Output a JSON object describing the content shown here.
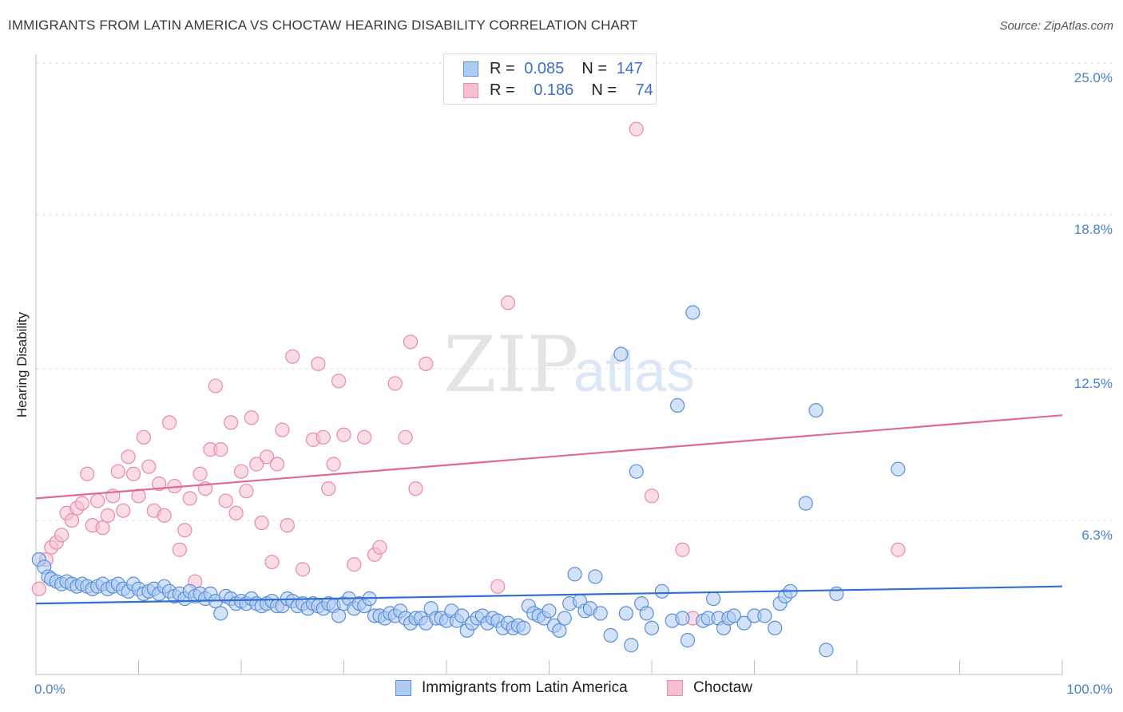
{
  "title": "IMMIGRANTS FROM LATIN AMERICA VS CHOCTAW HEARING DISABILITY CORRELATION CHART",
  "source": "Source: ZipAtlas.com",
  "watermark": {
    "zip": "ZIP",
    "atlas": "atlas"
  },
  "colors": {
    "blue_fill": "#aecbf2",
    "blue_stroke": "#5a8fd6",
    "blue_line": "#2e6fd1",
    "pink_fill": "#f6bfd0",
    "pink_stroke": "#e88aa8",
    "pink_line": "#e06a92",
    "grid": "#dcdcdc",
    "axis_text": "#4a7fcf"
  },
  "legend": {
    "rows": [
      {
        "r_label": "R =",
        "r_value": "0.085",
        "n_label": "N =",
        "n_value": "147"
      },
      {
        "r_label": "R =",
        "r_value": "0.186",
        "n_label": "N =",
        "n_value": "74"
      }
    ]
  },
  "chart_data": {
    "type": "scatter",
    "title": "IMMIGRANTS FROM LATIN AMERICA VS CHOCTAW HEARING DISABILITY CORRELATION CHART",
    "xlabel": "",
    "ylabel": "Hearing Disability",
    "xlim": [
      0,
      100
    ],
    "ylim": [
      0,
      25.0
    ],
    "x_tick_labels": [
      "0.0%",
      "100.0%"
    ],
    "y_ticks": [
      6.3,
      12.5,
      18.8,
      25.0
    ],
    "y_tick_labels": [
      "6.3%",
      "12.5%",
      "18.8%",
      "25.0%"
    ],
    "grid": true,
    "legend_position": "top-center",
    "series": [
      {
        "name": "Immigrants from Latin America",
        "color": "blue",
        "r": 0.085,
        "n": 147,
        "trend": {
          "x": [
            0,
            100
          ],
          "y": [
            2.9,
            3.6
          ]
        },
        "points": [
          [
            0.3,
            4.7
          ],
          [
            0.8,
            4.4
          ],
          [
            1.2,
            4.0
          ],
          [
            1.5,
            3.9
          ],
          [
            2.0,
            3.8
          ],
          [
            2.5,
            3.7
          ],
          [
            3.0,
            3.8
          ],
          [
            3.5,
            3.7
          ],
          [
            4.0,
            3.6
          ],
          [
            4.5,
            3.7
          ],
          [
            5.0,
            3.6
          ],
          [
            5.5,
            3.5
          ],
          [
            6.0,
            3.6
          ],
          [
            6.5,
            3.7
          ],
          [
            7.0,
            3.5
          ],
          [
            7.5,
            3.6
          ],
          [
            8.0,
            3.7
          ],
          [
            8.5,
            3.5
          ],
          [
            9.0,
            3.4
          ],
          [
            9.5,
            3.7
          ],
          [
            10.0,
            3.5
          ],
          [
            10.5,
            3.3
          ],
          [
            11.0,
            3.4
          ],
          [
            11.5,
            3.5
          ],
          [
            12.0,
            3.3
          ],
          [
            12.5,
            3.6
          ],
          [
            13.0,
            3.4
          ],
          [
            13.5,
            3.2
          ],
          [
            14.0,
            3.3
          ],
          [
            14.5,
            3.1
          ],
          [
            15.0,
            3.4
          ],
          [
            15.5,
            3.2
          ],
          [
            16.0,
            3.3
          ],
          [
            16.5,
            3.1
          ],
          [
            17.0,
            3.3
          ],
          [
            17.5,
            3.0
          ],
          [
            18.0,
            2.5
          ],
          [
            18.5,
            3.2
          ],
          [
            19.0,
            3.1
          ],
          [
            19.5,
            2.9
          ],
          [
            20.0,
            3.0
          ],
          [
            20.5,
            2.9
          ],
          [
            21.0,
            3.1
          ],
          [
            21.5,
            2.9
          ],
          [
            22.0,
            2.8
          ],
          [
            22.5,
            2.9
          ],
          [
            23.0,
            3.0
          ],
          [
            23.5,
            2.8
          ],
          [
            24.0,
            2.8
          ],
          [
            24.5,
            3.1
          ],
          [
            25.0,
            3.0
          ],
          [
            25.5,
            2.8
          ],
          [
            26.0,
            2.9
          ],
          [
            26.5,
            2.7
          ],
          [
            27.0,
            2.9
          ],
          [
            27.5,
            2.8
          ],
          [
            28.0,
            2.7
          ],
          [
            28.5,
            2.9
          ],
          [
            29.0,
            2.8
          ],
          [
            29.5,
            2.4
          ],
          [
            30.0,
            2.9
          ],
          [
            30.5,
            3.1
          ],
          [
            31.0,
            2.7
          ],
          [
            31.5,
            2.9
          ],
          [
            32.0,
            2.8
          ],
          [
            32.5,
            3.1
          ],
          [
            33.0,
            2.4
          ],
          [
            33.5,
            2.4
          ],
          [
            34.0,
            2.3
          ],
          [
            34.5,
            2.5
          ],
          [
            35.0,
            2.4
          ],
          [
            35.5,
            2.6
          ],
          [
            36.0,
            2.3
          ],
          [
            36.5,
            2.1
          ],
          [
            37.0,
            2.3
          ],
          [
            37.5,
            2.3
          ],
          [
            38.0,
            2.1
          ],
          [
            38.5,
            2.7
          ],
          [
            39.0,
            2.3
          ],
          [
            39.5,
            2.3
          ],
          [
            40.0,
            2.2
          ],
          [
            40.5,
            2.6
          ],
          [
            41.0,
            2.2
          ],
          [
            41.5,
            2.4
          ],
          [
            42.0,
            1.8
          ],
          [
            42.5,
            2.1
          ],
          [
            43.0,
            2.3
          ],
          [
            43.5,
            2.4
          ],
          [
            44.0,
            2.1
          ],
          [
            44.5,
            2.3
          ],
          [
            45.0,
            2.2
          ],
          [
            45.5,
            1.9
          ],
          [
            46.0,
            2.1
          ],
          [
            46.5,
            1.9
          ],
          [
            47.0,
            2.0
          ],
          [
            47.5,
            1.9
          ],
          [
            48.0,
            2.8
          ],
          [
            48.5,
            2.5
          ],
          [
            49.0,
            2.4
          ],
          [
            49.5,
            2.3
          ],
          [
            50.0,
            2.6
          ],
          [
            50.5,
            2.0
          ],
          [
            51.0,
            1.8
          ],
          [
            51.5,
            2.3
          ],
          [
            52.0,
            2.9
          ],
          [
            52.5,
            4.1
          ],
          [
            53.0,
            3.0
          ],
          [
            53.5,
            2.6
          ],
          [
            54.0,
            2.7
          ],
          [
            54.5,
            4.0
          ],
          [
            55.0,
            2.5
          ],
          [
            56.0,
            1.6
          ],
          [
            57.0,
            13.1
          ],
          [
            57.5,
            2.5
          ],
          [
            58.0,
            1.2
          ],
          [
            58.5,
            8.3
          ],
          [
            59.0,
            2.9
          ],
          [
            59.5,
            2.5
          ],
          [
            60.0,
            1.9
          ],
          [
            61.0,
            3.4
          ],
          [
            62.0,
            2.2
          ],
          [
            62.5,
            11.0
          ],
          [
            63.0,
            2.3
          ],
          [
            63.5,
            1.4
          ],
          [
            64.0,
            14.8
          ],
          [
            65.0,
            2.2
          ],
          [
            65.5,
            2.3
          ],
          [
            66.0,
            3.1
          ],
          [
            66.5,
            2.3
          ],
          [
            67.0,
            1.9
          ],
          [
            67.5,
            2.3
          ],
          [
            68.0,
            2.4
          ],
          [
            69.0,
            2.1
          ],
          [
            70.0,
            2.4
          ],
          [
            71.0,
            2.4
          ],
          [
            72.0,
            1.9
          ],
          [
            72.5,
            2.9
          ],
          [
            73.0,
            3.2
          ],
          [
            73.5,
            3.4
          ],
          [
            75.0,
            7.0
          ],
          [
            76.0,
            10.8
          ],
          [
            77.0,
            1.0
          ],
          [
            78.0,
            3.3
          ],
          [
            84.0,
            8.4
          ]
        ]
      },
      {
        "name": "Choctaw",
        "color": "pink",
        "r": 0.186,
        "n": 74,
        "trend": {
          "x": [
            0,
            100
          ],
          "y": [
            7.2,
            10.6
          ]
        },
        "points": [
          [
            0.3,
            3.5
          ],
          [
            1.0,
            4.7
          ],
          [
            1.5,
            5.2
          ],
          [
            2.0,
            5.4
          ],
          [
            2.5,
            5.7
          ],
          [
            3.0,
            6.6
          ],
          [
            3.5,
            6.3
          ],
          [
            4.0,
            6.8
          ],
          [
            4.5,
            7.0
          ],
          [
            5.0,
            8.2
          ],
          [
            5.5,
            6.1
          ],
          [
            6.0,
            7.1
          ],
          [
            6.5,
            6.0
          ],
          [
            7.0,
            6.5
          ],
          [
            7.5,
            7.3
          ],
          [
            8.0,
            8.3
          ],
          [
            8.5,
            6.7
          ],
          [
            9.0,
            8.9
          ],
          [
            9.5,
            8.2
          ],
          [
            10.0,
            7.3
          ],
          [
            10.5,
            9.7
          ],
          [
            11.0,
            8.5
          ],
          [
            11.5,
            6.7
          ],
          [
            12.0,
            7.8
          ],
          [
            12.5,
            6.5
          ],
          [
            13.0,
            10.3
          ],
          [
            13.5,
            7.7
          ],
          [
            14.0,
            5.1
          ],
          [
            14.5,
            5.9
          ],
          [
            15.0,
            7.2
          ],
          [
            15.5,
            3.8
          ],
          [
            16.0,
            8.2
          ],
          [
            16.5,
            7.6
          ],
          [
            17.0,
            9.2
          ],
          [
            17.5,
            11.8
          ],
          [
            18.0,
            9.2
          ],
          [
            18.5,
            7.1
          ],
          [
            19.0,
            10.3
          ],
          [
            19.5,
            6.6
          ],
          [
            20.0,
            8.3
          ],
          [
            20.5,
            7.5
          ],
          [
            21.0,
            10.5
          ],
          [
            21.5,
            8.6
          ],
          [
            22.0,
            6.2
          ],
          [
            22.5,
            8.9
          ],
          [
            23.0,
            4.6
          ],
          [
            23.5,
            8.6
          ],
          [
            24.0,
            10.0
          ],
          [
            24.5,
            6.1
          ],
          [
            25.0,
            13.0
          ],
          [
            26.0,
            4.3
          ],
          [
            27.0,
            9.6
          ],
          [
            27.5,
            12.7
          ],
          [
            28.0,
            9.7
          ],
          [
            28.5,
            7.6
          ],
          [
            29.0,
            8.6
          ],
          [
            29.5,
            12.0
          ],
          [
            30.0,
            9.8
          ],
          [
            31.0,
            4.5
          ],
          [
            32.0,
            9.7
          ],
          [
            33.0,
            4.9
          ],
          [
            33.5,
            5.2
          ],
          [
            35.0,
            11.9
          ],
          [
            36.0,
            9.7
          ],
          [
            36.5,
            13.6
          ],
          [
            37.0,
            7.6
          ],
          [
            38.0,
            12.7
          ],
          [
            45.0,
            3.6
          ],
          [
            46.0,
            15.2
          ],
          [
            58.5,
            22.3
          ],
          [
            60.0,
            7.3
          ],
          [
            63.0,
            5.1
          ],
          [
            64.0,
            2.3
          ],
          [
            84.0,
            5.1
          ]
        ]
      }
    ]
  }
}
